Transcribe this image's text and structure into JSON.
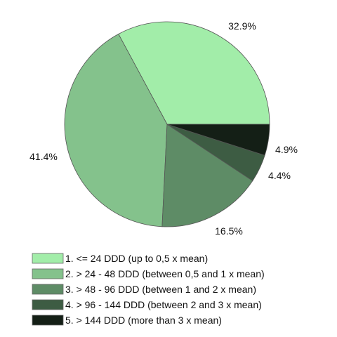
{
  "chart_data": {
    "type": "pie",
    "title": "",
    "categories": [
      "1. <= 24 DDD (up to 0,5 x mean)",
      "2. > 24 - 48 DDD (between 0,5 and 1 x mean)",
      "3. > 48 - 96 DDD (between 1 and 2 x mean)",
      "4. > 96 - 144 DDD (between 2 and 3 x mean)",
      "5. > 144 DDD (more than 3 x mean)"
    ],
    "values": [
      32.9,
      41.4,
      16.5,
      4.4,
      4.9
    ],
    "data_labels": [
      "32.9%",
      "41.4%",
      "16.5%",
      "4.4%",
      "4.9%"
    ],
    "colors": [
      "#a2eda9",
      "#84c28c",
      "#5e8c66",
      "#3d5c43",
      "#141f16"
    ],
    "legend_position": "bottom-left",
    "start": "3 o'clock",
    "direction": "counterclockwise"
  }
}
